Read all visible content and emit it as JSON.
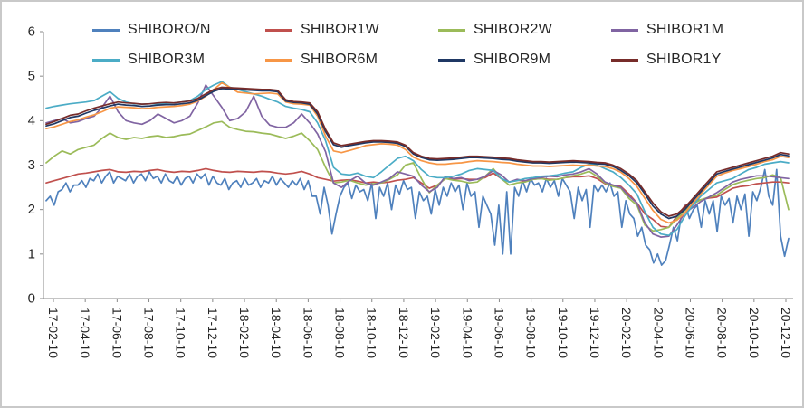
{
  "chart_data": {
    "type": "line",
    "title": "",
    "xlabel": "",
    "ylabel": "",
    "ylim": [
      0,
      6
    ],
    "yticks": [
      0,
      1,
      2,
      3,
      4,
      5,
      6
    ],
    "grid": false,
    "legend_position": "top",
    "x_tick_labels": [
      "17-02-10",
      "17-04-10",
      "17-06-10",
      "17-08-10",
      "17-10-10",
      "17-12-10",
      "18-02-10",
      "18-04-10",
      "18-06-10",
      "18-08-10",
      "18-10-10",
      "18-12-10",
      "19-02-10",
      "19-04-10",
      "19-06-10",
      "19-08-10",
      "19-10-10",
      "19-12-10",
      "20-02-10",
      "20-04-10",
      "20-06-10",
      "20-08-10",
      "20-10-10",
      "20-12-10"
    ],
    "series": [
      {
        "name": "SHIBORO/N",
        "color": "#4F81BD",
        "values": [
          2.2,
          2.3,
          2.1,
          2.4,
          2.45,
          2.6,
          2.4,
          2.55,
          2.55,
          2.65,
          2.5,
          2.7,
          2.65,
          2.8,
          2.6,
          2.75,
          2.85,
          2.6,
          2.75,
          2.7,
          2.65,
          2.8,
          2.6,
          2.75,
          2.8,
          2.65,
          2.85,
          2.7,
          2.75,
          2.6,
          2.8,
          2.65,
          2.6,
          2.75,
          2.55,
          2.7,
          2.75,
          2.6,
          2.8,
          2.7,
          2.8,
          2.55,
          2.75,
          2.6,
          2.55,
          2.7,
          2.45,
          2.6,
          2.65,
          2.5,
          2.7,
          2.55,
          2.6,
          2.7,
          2.5,
          2.65,
          2.6,
          2.75,
          2.55,
          2.7,
          2.6,
          2.5,
          2.65,
          2.55,
          2.7,
          2.45,
          2.65,
          2.3,
          2.3,
          1.9,
          2.5,
          2.1,
          1.45,
          1.9,
          2.3,
          2.5,
          2.6,
          2.25,
          2.55,
          2.4,
          2.45,
          2.2,
          2.6,
          1.8,
          2.5,
          2.3,
          2.6,
          2.0,
          2.55,
          2.35,
          2.65,
          2.45,
          2.5,
          1.8,
          2.4,
          2.2,
          2.3,
          1.9,
          2.45,
          2.1,
          2.5,
          2.3,
          2.6,
          2.4,
          2.55,
          2.0,
          2.6,
          2.3,
          2.4,
          1.6,
          2.3,
          2.1,
          1.9,
          1.2,
          2.1,
          1.0,
          2.4,
          1.0,
          2.5,
          2.3,
          2.65,
          2.4,
          2.7,
          2.55,
          2.6,
          2.4,
          2.7,
          2.5,
          2.65,
          2.3,
          2.7,
          2.55,
          2.4,
          1.8,
          2.5,
          2.2,
          2.45,
          1.6,
          2.55,
          2.4,
          2.55,
          2.4,
          2.6,
          2.3,
          2.4,
          1.6,
          2.2,
          1.9,
          1.8,
          1.4,
          1.6,
          1.2,
          1.1,
          0.8,
          1.0,
          0.75,
          0.85,
          1.2,
          1.6,
          1.3,
          1.9,
          2.1,
          1.8,
          2.0,
          2.1,
          1.6,
          2.2,
          1.9,
          2.2,
          1.5,
          2.3,
          2.1,
          2.25,
          1.7,
          2.3,
          2.0,
          2.35,
          1.4,
          2.4,
          2.2,
          2.5,
          2.9,
          2.3,
          2.1,
          2.9,
          1.4,
          0.95,
          1.35
        ]
      },
      {
        "name": "SHIBOR1W",
        "color": "#C0504D",
        "values": [
          2.6,
          2.65,
          2.7,
          2.75,
          2.8,
          2.82,
          2.85,
          2.88,
          2.9,
          2.85,
          2.84,
          2.86,
          2.85,
          2.88,
          2.9,
          2.86,
          2.84,
          2.86,
          2.85,
          2.88,
          2.92,
          2.88,
          2.85,
          2.84,
          2.86,
          2.85,
          2.84,
          2.86,
          2.85,
          2.82,
          2.8,
          2.82,
          2.86,
          2.8,
          2.72,
          2.68,
          2.64,
          2.66,
          2.67,
          2.64,
          2.6,
          2.62,
          2.6,
          2.62,
          2.66,
          2.68,
          2.72,
          2.6,
          2.48,
          2.55,
          2.7,
          2.68,
          2.7,
          2.68,
          2.68,
          2.72,
          2.82,
          2.7,
          2.62,
          2.66,
          2.64,
          2.68,
          2.7,
          2.68,
          2.68,
          2.72,
          2.74,
          2.74,
          2.76,
          2.7,
          2.58,
          2.55,
          2.52,
          2.35,
          2.15,
          1.9,
          1.78,
          1.62,
          1.6,
          1.85,
          2.08,
          2.18,
          2.22,
          2.26,
          2.28,
          2.38,
          2.48,
          2.52,
          2.54,
          2.58,
          2.6,
          2.62,
          2.62,
          2.6
        ]
      },
      {
        "name": "SHIBOR2W",
        "color": "#9BBB59",
        "values": [
          3.05,
          3.2,
          3.32,
          3.25,
          3.35,
          3.4,
          3.45,
          3.6,
          3.72,
          3.62,
          3.58,
          3.62,
          3.6,
          3.64,
          3.66,
          3.62,
          3.64,
          3.68,
          3.7,
          3.78,
          3.86,
          3.95,
          3.98,
          3.85,
          3.8,
          3.76,
          3.75,
          3.72,
          3.7,
          3.65,
          3.6,
          3.65,
          3.72,
          3.55,
          3.35,
          2.95,
          2.6,
          2.62,
          2.66,
          2.6,
          2.55,
          2.58,
          2.6,
          2.68,
          2.78,
          3.0,
          3.05,
          2.7,
          2.38,
          2.55,
          2.7,
          2.66,
          2.64,
          2.6,
          2.62,
          2.75,
          2.92,
          2.7,
          2.55,
          2.6,
          2.62,
          2.68,
          2.7,
          2.66,
          2.68,
          2.72,
          2.76,
          2.8,
          2.86,
          2.75,
          2.6,
          2.52,
          2.48,
          2.25,
          2.1,
          1.65,
          1.52,
          1.55,
          1.6,
          1.8,
          1.98,
          2.12,
          2.22,
          2.28,
          2.32,
          2.45,
          2.56,
          2.62,
          2.66,
          2.7,
          2.72,
          2.78,
          2.72,
          2.0
        ]
      },
      {
        "name": "SHIBOR1M",
        "color": "#8064A2",
        "values": [
          3.95,
          4.0,
          4.05,
          3.95,
          3.98,
          4.05,
          4.1,
          4.3,
          4.55,
          4.2,
          4.0,
          3.95,
          3.92,
          4.0,
          4.15,
          4.05,
          3.95,
          4.0,
          4.1,
          4.4,
          4.8,
          4.55,
          4.3,
          4.0,
          4.05,
          4.2,
          4.55,
          4.1,
          3.9,
          3.85,
          3.85,
          3.95,
          4.15,
          3.95,
          3.7,
          3.3,
          2.6,
          2.5,
          2.65,
          2.75,
          2.6,
          2.55,
          2.62,
          2.7,
          2.85,
          2.8,
          2.75,
          2.55,
          2.4,
          2.5,
          2.75,
          2.7,
          2.72,
          2.65,
          2.68,
          2.75,
          2.88,
          2.78,
          2.62,
          2.68,
          2.65,
          2.7,
          2.72,
          2.75,
          2.74,
          2.78,
          2.8,
          2.85,
          2.92,
          2.8,
          2.62,
          2.55,
          2.5,
          2.3,
          2.15,
          1.7,
          1.45,
          1.38,
          1.4,
          1.65,
          1.92,
          2.05,
          2.18,
          2.28,
          2.38,
          2.5,
          2.62,
          2.68,
          2.72,
          2.76,
          2.76,
          2.74,
          2.72,
          2.7
        ]
      },
      {
        "name": "SHIBOR3M",
        "color": "#4BACC6",
        "values": [
          4.28,
          4.32,
          4.35,
          4.38,
          4.4,
          4.42,
          4.45,
          4.55,
          4.65,
          4.5,
          4.42,
          4.38,
          4.37,
          4.38,
          4.38,
          4.39,
          4.4,
          4.42,
          4.45,
          4.55,
          4.7,
          4.8,
          4.88,
          4.75,
          4.7,
          4.65,
          4.6,
          4.55,
          4.48,
          4.42,
          4.32,
          4.28,
          4.25,
          4.2,
          3.95,
          3.55,
          2.95,
          2.8,
          2.78,
          2.82,
          2.75,
          2.72,
          2.85,
          3.0,
          3.15,
          3.2,
          3.1,
          2.9,
          2.75,
          2.72,
          2.72,
          2.75,
          2.8,
          2.88,
          2.92,
          2.9,
          2.88,
          2.7,
          2.62,
          2.65,
          2.7,
          2.72,
          2.75,
          2.76,
          2.78,
          2.82,
          2.85,
          2.95,
          3.02,
          3.0,
          2.92,
          2.85,
          2.72,
          2.55,
          2.35,
          1.95,
          1.6,
          1.45,
          1.42,
          1.55,
          1.85,
          2.1,
          2.3,
          2.45,
          2.6,
          2.65,
          2.7,
          2.8,
          2.9,
          2.95,
          3.02,
          3.05,
          3.08,
          3.05
        ]
      },
      {
        "name": "SHIBOR6M",
        "color": "#F79646",
        "values": [
          3.82,
          3.86,
          3.92,
          3.98,
          4.02,
          4.08,
          4.13,
          4.2,
          4.28,
          4.31,
          4.3,
          4.29,
          4.27,
          4.28,
          4.3,
          4.31,
          4.32,
          4.34,
          4.37,
          4.44,
          4.55,
          4.7,
          4.85,
          4.75,
          4.64,
          4.62,
          4.6,
          4.61,
          4.62,
          4.6,
          4.42,
          4.38,
          4.37,
          4.35,
          4.1,
          3.65,
          3.32,
          3.28,
          3.33,
          3.38,
          3.44,
          3.46,
          3.48,
          3.47,
          3.45,
          3.35,
          3.18,
          3.1,
          3.05,
          3.02,
          3.02,
          3.04,
          3.05,
          3.08,
          3.1,
          3.09,
          3.08,
          3.06,
          3.05,
          3.02,
          3.0,
          2.98,
          2.98,
          2.97,
          2.98,
          2.99,
          3.0,
          2.99,
          3.0,
          2.98,
          2.97,
          2.92,
          2.84,
          2.7,
          2.52,
          2.25,
          1.98,
          1.78,
          1.7,
          1.76,
          1.92,
          2.15,
          2.35,
          2.55,
          2.75,
          2.82,
          2.88,
          2.92,
          2.97,
          3.02,
          3.08,
          3.12,
          3.2,
          3.17
        ]
      },
      {
        "name": "SHIBOR9M",
        "color": "#1F3864",
        "values": [
          3.88,
          3.93,
          4.0,
          4.07,
          4.1,
          4.17,
          4.23,
          4.28,
          4.33,
          4.37,
          4.35,
          4.34,
          4.32,
          4.33,
          4.35,
          4.36,
          4.36,
          4.38,
          4.4,
          4.46,
          4.56,
          4.66,
          4.72,
          4.71,
          4.7,
          4.69,
          4.68,
          4.67,
          4.67,
          4.65,
          4.44,
          4.41,
          4.4,
          4.37,
          4.15,
          3.75,
          3.46,
          3.4,
          3.44,
          3.47,
          3.5,
          3.52,
          3.52,
          3.51,
          3.49,
          3.42,
          3.25,
          3.17,
          3.12,
          3.11,
          3.12,
          3.13,
          3.15,
          3.17,
          3.17,
          3.16,
          3.15,
          3.13,
          3.12,
          3.09,
          3.07,
          3.05,
          3.05,
          3.04,
          3.05,
          3.06,
          3.07,
          3.06,
          3.05,
          3.03,
          3.02,
          2.97,
          2.88,
          2.76,
          2.6,
          2.35,
          2.08,
          1.9,
          1.8,
          1.85,
          2.0,
          2.2,
          2.4,
          2.6,
          2.8,
          2.86,
          2.91,
          2.96,
          3.01,
          3.06,
          3.11,
          3.16,
          3.24,
          3.21
        ]
      },
      {
        "name": "SHIBOR1Y",
        "color": "#772C2A",
        "values": [
          3.92,
          3.98,
          4.05,
          4.12,
          4.15,
          4.22,
          4.28,
          4.33,
          4.38,
          4.42,
          4.4,
          4.39,
          4.37,
          4.38,
          4.4,
          4.41,
          4.4,
          4.42,
          4.44,
          4.5,
          4.6,
          4.7,
          4.75,
          4.74,
          4.73,
          4.72,
          4.71,
          4.7,
          4.7,
          4.68,
          4.47,
          4.43,
          4.42,
          4.4,
          4.2,
          3.8,
          3.5,
          3.44,
          3.47,
          3.5,
          3.53,
          3.55,
          3.55,
          3.54,
          3.52,
          3.45,
          3.28,
          3.2,
          3.15,
          3.14,
          3.15,
          3.16,
          3.18,
          3.2,
          3.2,
          3.19,
          3.18,
          3.16,
          3.15,
          3.12,
          3.1,
          3.08,
          3.08,
          3.07,
          3.08,
          3.09,
          3.1,
          3.09,
          3.08,
          3.06,
          3.05,
          3.0,
          2.92,
          2.8,
          2.65,
          2.4,
          2.15,
          1.95,
          1.85,
          1.9,
          2.05,
          2.25,
          2.45,
          2.65,
          2.85,
          2.9,
          2.95,
          3.0,
          3.05,
          3.1,
          3.15,
          3.2,
          3.28,
          3.25
        ]
      }
    ],
    "style": {
      "axis_color": "#898989",
      "text_color": "#262626",
      "frame_border_color": "#c9c9c9",
      "background": "#ffffff"
    }
  }
}
